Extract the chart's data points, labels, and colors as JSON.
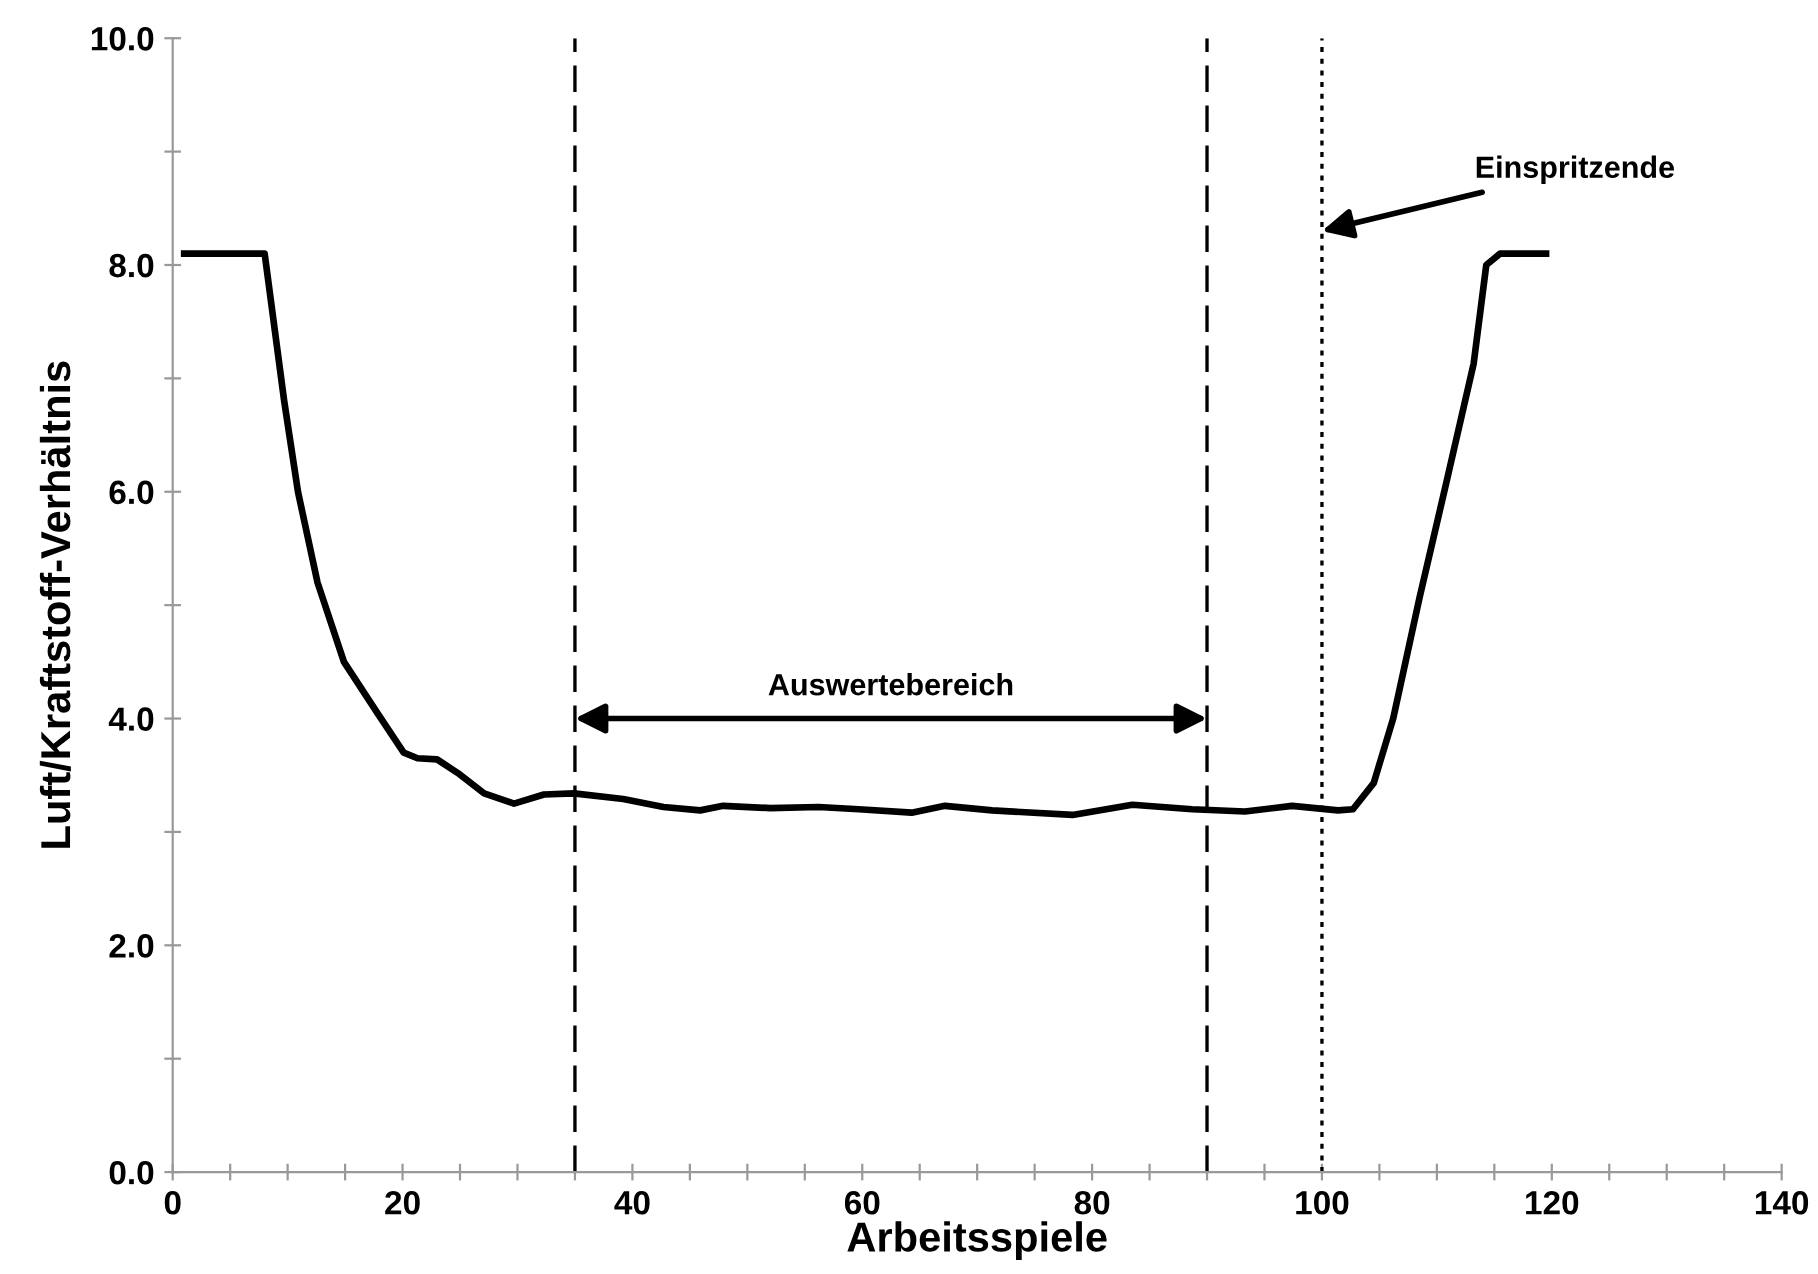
{
  "chart_data": {
    "type": "line",
    "xlabel": "Arbeitsspiele",
    "ylabel": "Luft/Kraftstoff-Verhältnis",
    "series": [
      {
        "color": "#000000",
        "x": [
          1,
          4,
          7,
          8,
          9.7,
          10.9,
          12.6,
          14.9,
          17.8,
          20.1,
          21.3,
          23,
          24.8,
          27.1,
          29.7,
          32.3,
          34.9,
          39.2,
          42.7,
          45.9,
          47.9,
          52,
          56.2,
          59.7,
          64.3,
          67.2,
          71.3,
          78.3,
          83.5,
          88.7,
          93.3,
          97.4,
          101.4,
          102.7,
          104.5,
          106.2,
          108.5,
          110.8,
          113.2,
          114.3,
          115.5,
          119.5
        ],
        "values": [
          8.1,
          8.1,
          8.1,
          8.1,
          6.8,
          6.0,
          5.2,
          4.5,
          4.05,
          3.7,
          3.65,
          3.64,
          3.52,
          3.34,
          3.25,
          3.33,
          3.34,
          3.29,
          3.22,
          3.19,
          3.23,
          3.21,
          3.22,
          3.2,
          3.17,
          3.23,
          3.19,
          3.15,
          3.24,
          3.2,
          3.18,
          3.23,
          3.19,
          3.2,
          3.43,
          4.0,
          5.07,
          6.07,
          7.13,
          8.0,
          8.1,
          8.1
        ]
      }
    ],
    "xlim": [
      0,
      140
    ],
    "ylim": [
      0,
      10
    ],
    "xticks": [
      0,
      {
        "value": 5,
        "label": null
      },
      {
        "value": 10,
        "label": null
      },
      {
        "value": 15,
        "label": null
      },
      20,
      {
        "value": 25,
        "label": null
      },
      {
        "value": 30,
        "label": null
      },
      {
        "value": 35,
        "label": null
      },
      40,
      {
        "value": 45,
        "label": null
      },
      {
        "value": 50,
        "label": null
      },
      {
        "value": 55,
        "label": null
      },
      60,
      {
        "value": 65,
        "label": null
      },
      {
        "value": 70,
        "label": null
      },
      {
        "value": 75,
        "label": null
      },
      80,
      {
        "value": 85,
        "label": null
      },
      {
        "value": 90,
        "label": null
      },
      {
        "value": 95,
        "label": null
      },
      100,
      {
        "value": 105,
        "label": null
      },
      {
        "value": 110,
        "label": null
      },
      {
        "value": 115,
        "label": null
      },
      120,
      {
        "value": 125,
        "label": null
      },
      {
        "value": 130,
        "label": null
      },
      {
        "value": 135,
        "label": null
      },
      140
    ],
    "yticks": [
      {
        "value": 0,
        "label": "0.0"
      },
      {
        "value": 1,
        "label": null
      },
      {
        "value": 2,
        "label": "2.0"
      },
      {
        "value": 3,
        "label": null
      },
      {
        "value": 4,
        "label": "4.0"
      },
      {
        "value": 5,
        "label": null
      },
      {
        "value": 6,
        "label": "6.0"
      },
      {
        "value": 7,
        "label": null
      },
      {
        "value": 8,
        "label": "8.0"
      },
      {
        "value": 9,
        "label": null
      },
      {
        "value": 10,
        "label": "10.0"
      }
    ],
    "ref_lines": [
      {
        "axis": "x",
        "value": 35,
        "line_style": "dashed",
        "color": "#000000"
      },
      {
        "axis": "x",
        "value": 90,
        "line_style": "dashed",
        "color": "#000000"
      },
      {
        "axis": "x",
        "value": 100,
        "line_style": "dotted",
        "color": "#000000"
      }
    ],
    "annotations": [
      "Auswertebereich",
      {
        "text": "Einspritzende",
        "x": 100,
        "y": 8.3
      }
    ],
    "grid": false,
    "legend": false,
    "marker": "none",
    "line_style": "solid"
  }
}
